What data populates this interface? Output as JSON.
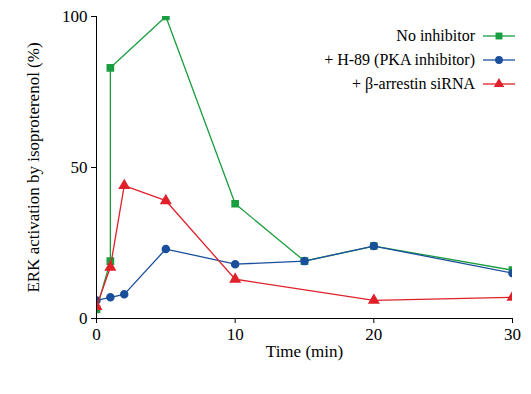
{
  "chart_data": {
    "type": "line",
    "x_label": "Time (min)",
    "y_label": "ERK activation by isoproterenol (%)",
    "xlim": [
      0,
      30
    ],
    "xticks": [
      0,
      10,
      20,
      30
    ],
    "ylim": [
      0,
      100
    ],
    "yticks": [
      0,
      50,
      100
    ],
    "grid": false,
    "legend": "top-right",
    "series": [
      {
        "name": "No inhibitor",
        "color": "#1a9e3f",
        "marker": "square",
        "x": [
          0,
          1,
          1,
          5,
          10,
          15,
          20,
          30
        ],
        "values": [
          3,
          19,
          83,
          100,
          38,
          19,
          24,
          16
        ]
      },
      {
        "name": "+ H-89 (PKA inhibitor)",
        "color": "#1b4f9c",
        "marker": "circle",
        "x": [
          0,
          1,
          2,
          5,
          10,
          15,
          20,
          30
        ],
        "values": [
          6,
          7,
          8,
          23,
          18,
          19,
          24,
          15
        ]
      },
      {
        "name": "+ β-arrestin siRNA",
        "color": "#e0202a",
        "marker": "triangle",
        "x": [
          0,
          1,
          2,
          5,
          10,
          20,
          30
        ],
        "values": [
          4,
          17,
          44,
          39,
          13,
          6,
          7
        ]
      }
    ]
  }
}
